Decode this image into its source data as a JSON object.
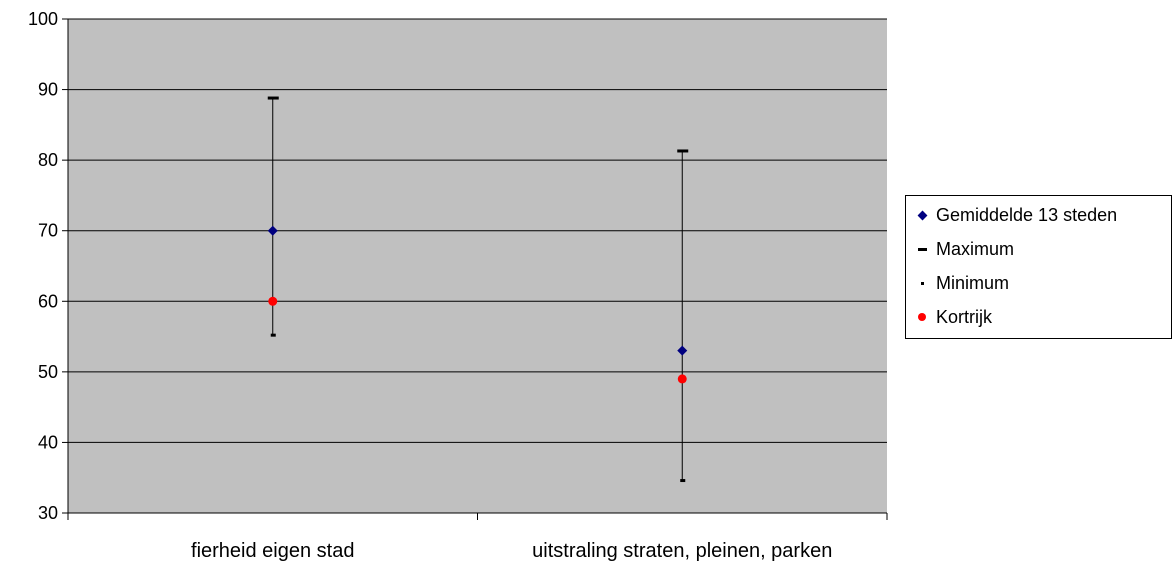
{
  "chart_data": {
    "type": "scatter",
    "categories": [
      "fierheid eigen stad",
      "uitstraling straten, pleinen, parken"
    ],
    "ylim": [
      30,
      100
    ],
    "yticks": [
      30,
      40,
      50,
      60,
      70,
      80,
      90,
      100
    ],
    "grid": true,
    "legend_position": "right",
    "plot_background": "#c0c0c0",
    "series": [
      {
        "name": "Gemiddelde 13 steden",
        "values": [
          70,
          53
        ],
        "marker": "diamond",
        "color": "#000080"
      },
      {
        "name": "Maximum",
        "values": [
          88.8,
          81.3
        ],
        "marker": "dash",
        "color": "#000000"
      },
      {
        "name": "Minimum",
        "values": [
          55.2,
          34.6
        ],
        "marker": "small-dash",
        "color": "#000000"
      },
      {
        "name": "Kortrijk",
        "values": [
          60,
          49
        ],
        "marker": "circle",
        "color": "#ff0000"
      }
    ]
  }
}
